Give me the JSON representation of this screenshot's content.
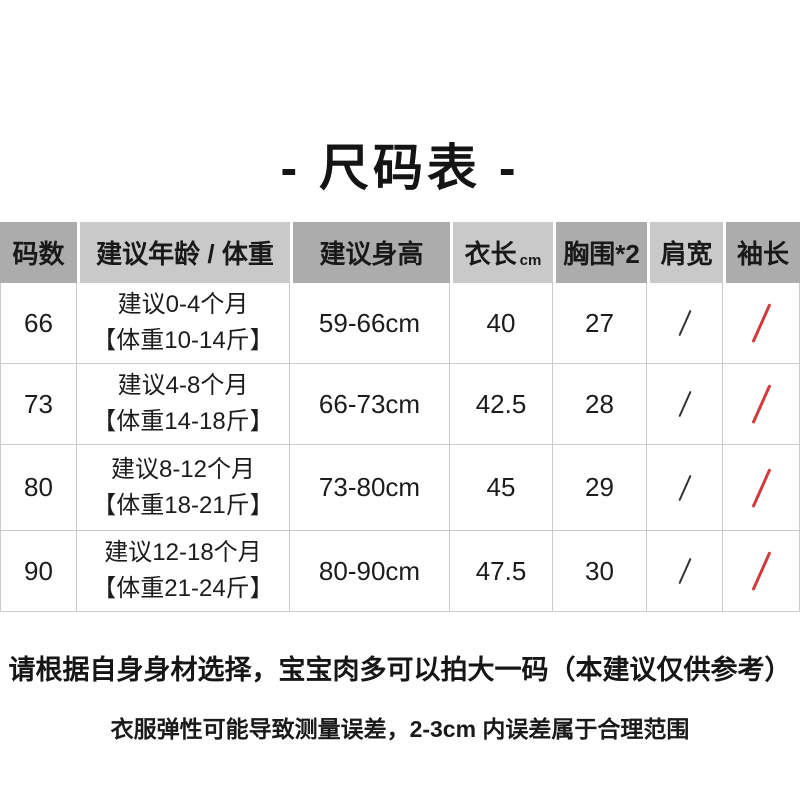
{
  "title": "- 尺码表 -",
  "table": {
    "columns": [
      {
        "key": "size",
        "label": "码数"
      },
      {
        "key": "age",
        "label": "建议年龄 / 体重"
      },
      {
        "key": "height",
        "label": "建议身高"
      },
      {
        "key": "length",
        "label": "衣长",
        "unit": "cm"
      },
      {
        "key": "chest",
        "label": "胸围*2"
      },
      {
        "key": "shoulder",
        "label": "肩宽"
      },
      {
        "key": "sleeve",
        "label": "袖长"
      }
    ],
    "rows": [
      {
        "size": "66",
        "age": [
          "建议0-4个月",
          "【体重10-14斤】"
        ],
        "height": "59-66cm",
        "length": "40",
        "chest": "27",
        "shoulder": "/",
        "sleeve": "/"
      },
      {
        "size": "73",
        "age": [
          "建议4-8个月",
          "【体重14-18斤】"
        ],
        "height": "66-73cm",
        "length": "42.5",
        "chest": "28",
        "shoulder": "/",
        "sleeve": "/"
      },
      {
        "size": "80",
        "age": [
          "建议8-12个月",
          "【体重18-21斤】"
        ],
        "height": "73-80cm",
        "length": "45",
        "chest": "29",
        "shoulder": "/",
        "sleeve": "/"
      },
      {
        "size": "90",
        "age": [
          "建议12-18个月",
          "【体重21-24斤】"
        ],
        "height": "80-90cm",
        "length": "47.5",
        "chest": "30",
        "shoulder": "/",
        "sleeve": "/"
      }
    ]
  },
  "notes": {
    "line1": "请根据自身身材选择，宝宝肉多可以拍大一码（本建议仅供参考）",
    "line2": "衣服弹性可能导致测量误差，2-3cm 内误差属于合理范围"
  },
  "colors": {
    "header_dark": "#acacac",
    "header_light": "#c9c9c9",
    "border": "#cbcbcb",
    "slash_black": "#333333",
    "slash_red": "#d23b3b"
  }
}
